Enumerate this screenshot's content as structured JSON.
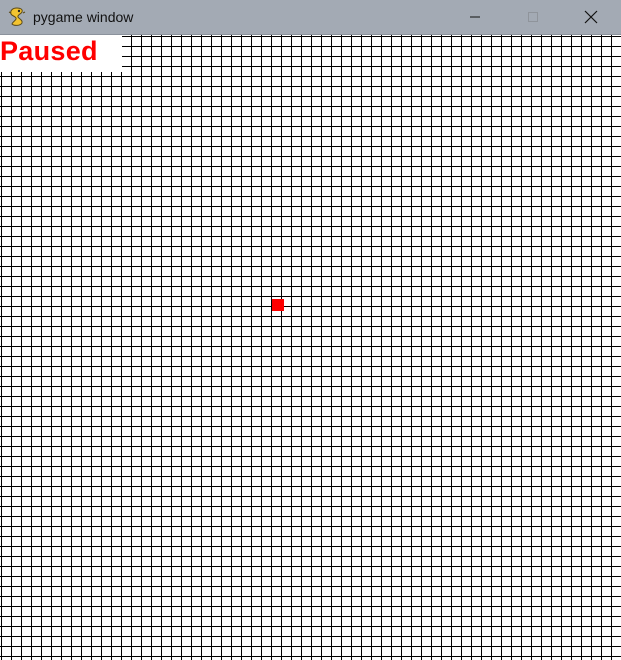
{
  "window": {
    "title": "pygame window",
    "icon": "pygame-snake-icon",
    "controls": [
      "minimize-icon",
      "maximize-icon",
      "close-icon"
    ]
  },
  "game": {
    "status_text": "Paused",
    "status_color": "#ff0000",
    "grid_line_color": "#000000",
    "background_color": "#ffffff",
    "food_color": "#ff0000"
  }
}
